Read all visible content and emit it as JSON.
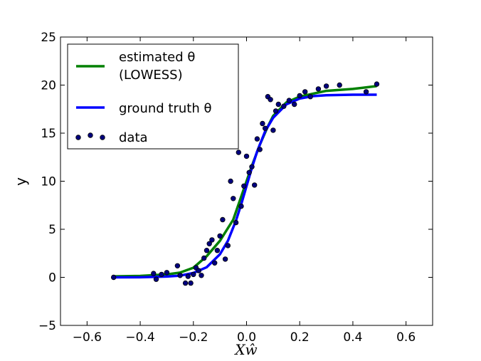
{
  "chart_data": {
    "type": "line",
    "xlabel": "Xŵ",
    "ylabel": "y",
    "xlim": [
      -0.7,
      0.7
    ],
    "ylim": [
      -5,
      25
    ],
    "xticks": [
      -0.6,
      -0.4,
      -0.2,
      0.0,
      0.2,
      0.4,
      0.6
    ],
    "xtick_labels": [
      "−0.6",
      "−0.4",
      "−0.2",
      "0.0",
      "0.2",
      "0.4",
      "0.6"
    ],
    "yticks": [
      -5,
      0,
      5,
      10,
      15,
      20,
      25
    ],
    "ytick_labels": [
      "−5",
      "0",
      "5",
      "10",
      "15",
      "20",
      "25"
    ],
    "grid": false,
    "legend": {
      "placement": "top-left",
      "entries": [
        {
          "label_line1": "estimated θ",
          "label_line2": "(LOWESS)",
          "series": "estimated"
        },
        {
          "label_line1": "ground truth θ",
          "series": "ground_truth"
        },
        {
          "label_line1": "data",
          "series": "data"
        }
      ]
    },
    "colors": {
      "estimated": "#008000",
      "ground_truth": "#0000ff",
      "data": "#00007f"
    },
    "series": [
      {
        "key": "estimated",
        "kind": "line",
        "x": [
          -0.5,
          -0.4,
          -0.3,
          -0.25,
          -0.2,
          -0.15,
          -0.1,
          -0.05,
          -0.02,
          0.0,
          0.02,
          0.05,
          0.08,
          0.1,
          0.15,
          0.2,
          0.25,
          0.3,
          0.4,
          0.49
        ],
        "y": [
          0.1,
          0.15,
          0.3,
          0.5,
          1.0,
          2.2,
          3.8,
          6.0,
          8.4,
          10.0,
          11.6,
          13.8,
          15.7,
          16.8,
          18.2,
          18.8,
          19.1,
          19.4,
          19.6,
          19.9
        ]
      },
      {
        "key": "ground_truth",
        "kind": "line",
        "x": [
          -0.5,
          -0.4,
          -0.3,
          -0.25,
          -0.2,
          -0.15,
          -0.1,
          -0.07,
          -0.04,
          -0.02,
          0.0,
          0.02,
          0.04,
          0.07,
          0.1,
          0.15,
          0.2,
          0.25,
          0.3,
          0.4,
          0.49
        ],
        "y": [
          0.0,
          0.01,
          0.08,
          0.18,
          0.45,
          1.05,
          2.4,
          3.8,
          5.9,
          7.6,
          9.5,
          11.4,
          13.1,
          15.2,
          16.6,
          18.0,
          18.6,
          18.85,
          18.95,
          19.0,
          19.0
        ]
      },
      {
        "key": "data",
        "kind": "scatter",
        "x": [
          -0.5,
          -0.35,
          -0.34,
          -0.32,
          -0.3,
          -0.26,
          -0.25,
          -0.23,
          -0.22,
          -0.21,
          -0.2,
          -0.19,
          -0.18,
          -0.17,
          -0.16,
          -0.15,
          -0.14,
          -0.13,
          -0.12,
          -0.11,
          -0.1,
          -0.09,
          -0.08,
          -0.07,
          -0.06,
          -0.05,
          -0.04,
          -0.03,
          -0.02,
          -0.01,
          0.0,
          0.01,
          0.02,
          0.03,
          0.04,
          0.05,
          0.06,
          0.07,
          0.08,
          0.09,
          0.1,
          0.11,
          0.12,
          0.14,
          0.16,
          0.18,
          0.2,
          0.22,
          0.24,
          0.27,
          0.3,
          0.35,
          0.45,
          0.49
        ],
        "y": [
          0.0,
          0.4,
          -0.2,
          0.3,
          0.5,
          1.2,
          0.2,
          -0.6,
          0.1,
          -0.6,
          0.3,
          1.0,
          0.7,
          0.2,
          2.0,
          2.8,
          3.5,
          3.9,
          1.5,
          2.8,
          4.3,
          6.0,
          1.9,
          3.3,
          10.0,
          8.2,
          5.7,
          13.0,
          7.4,
          9.5,
          12.6,
          10.9,
          11.5,
          9.6,
          14.4,
          13.3,
          16.0,
          15.5,
          18.8,
          18.5,
          15.3,
          17.3,
          18.0,
          17.8,
          18.4,
          18.0,
          18.9,
          19.3,
          18.8,
          19.6,
          19.9,
          20.0,
          19.3,
          20.1
        ]
      }
    ]
  }
}
